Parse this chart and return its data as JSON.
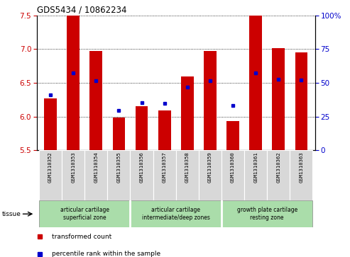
{
  "title": "GDS5434 / 10862234",
  "samples": [
    "GSM1310352",
    "GSM1310353",
    "GSM1310354",
    "GSM1310355",
    "GSM1310356",
    "GSM1310357",
    "GSM1310358",
    "GSM1310359",
    "GSM1310360",
    "GSM1310361",
    "GSM1310362",
    "GSM1310363"
  ],
  "red_values": [
    6.27,
    7.5,
    6.97,
    5.99,
    6.15,
    6.09,
    6.6,
    6.97,
    5.93,
    7.5,
    7.02,
    6.95
  ],
  "blue_values": [
    6.32,
    6.65,
    6.53,
    6.09,
    6.21,
    6.2,
    6.44,
    6.53,
    6.16,
    6.65,
    6.55,
    6.54
  ],
  "ylim_left": [
    5.5,
    7.5
  ],
  "ylim_right": [
    0,
    100
  ],
  "yticks_left": [
    5.5,
    6.0,
    6.5,
    7.0,
    7.5
  ],
  "yticks_right": [
    0,
    25,
    50,
    75,
    100
  ],
  "red_color": "#cc0000",
  "blue_color": "#0000cc",
  "bar_bottom": 5.5,
  "tissue_label": "tissue",
  "legend_red": "transformed count",
  "legend_blue": "percentile rank within the sample",
  "bg_color": "#d8d8d8",
  "green_color": "#aaddaa",
  "bar_width": 0.55,
  "group_defs": [
    [
      0,
      3,
      "articular cartilage\nsuperficial zone"
    ],
    [
      4,
      7,
      "articular cartilage\nintermediate/deep zones"
    ],
    [
      8,
      11,
      "growth plate cartilage\nresting zone"
    ]
  ]
}
